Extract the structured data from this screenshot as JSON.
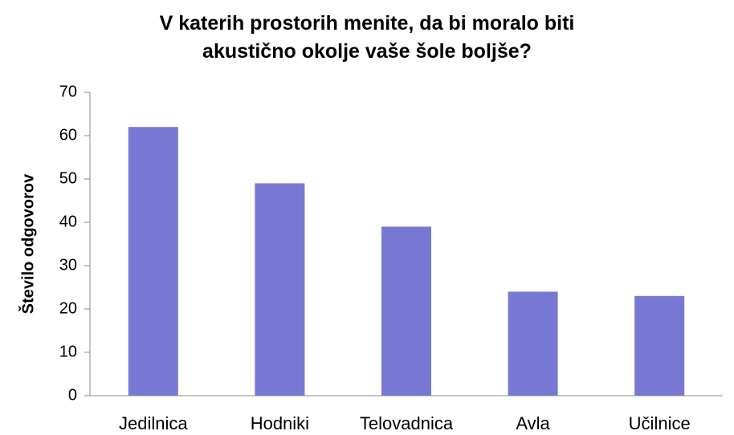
{
  "chart_data": {
    "type": "bar",
    "title": "V katerih prostorih menite, da bi moralo biti akustično okolje vaše šole boljše?",
    "ylabel": "Število odgovorov",
    "categories": [
      "Jedilnica",
      "Hodniki",
      "Telovadnica",
      "Avla",
      "Učilnice"
    ],
    "values": [
      62,
      49,
      39,
      24,
      23
    ],
    "color": "#7878d4",
    "ylim": [
      0,
      70
    ],
    "yticks": [
      0,
      10,
      20,
      30,
      40,
      50,
      60,
      70
    ],
    "grid": false
  }
}
